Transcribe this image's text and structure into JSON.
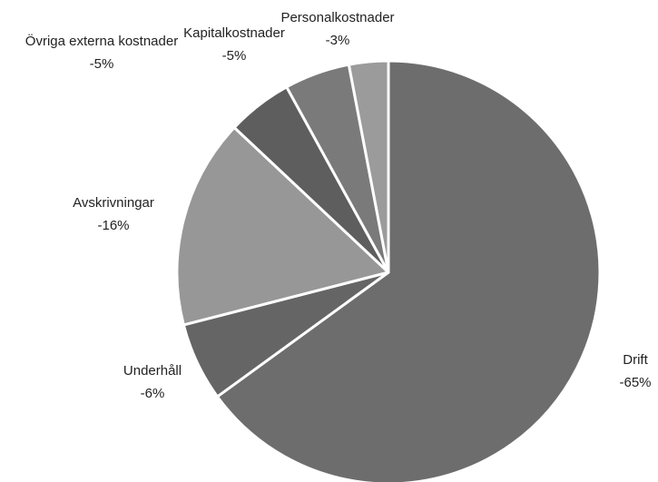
{
  "chart_data": {
    "type": "pie",
    "categories": [
      "Drift",
      "Underhåll",
      "Avskrivningar",
      "Övriga externa kostnader",
      "Kapitalkostnader",
      "Personalkostnader"
    ],
    "values": [
      -65,
      -6,
      -16,
      -5,
      -5,
      -3
    ],
    "value_labels": [
      "-65%",
      "-6%",
      "-16%",
      "-5%",
      "-5%",
      "-3%"
    ],
    "colors": [
      "#6d6d6d",
      "#656565",
      "#979797",
      "#5e5e5e",
      "#7a7a7a",
      "#9b9b9b"
    ]
  }
}
